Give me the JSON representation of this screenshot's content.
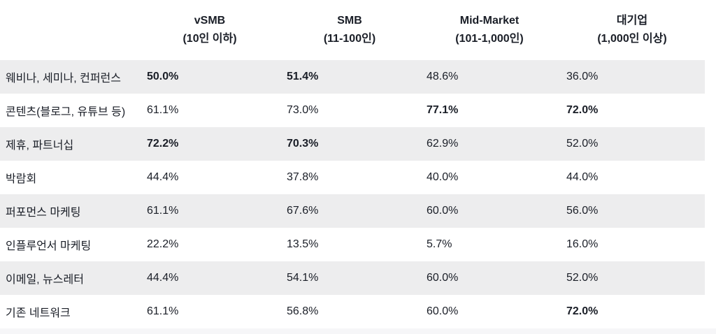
{
  "colors": {
    "text": "#1a1e27",
    "page_bg": "#ffffff",
    "stripe_row_bg": "#ededee",
    "white_row_bg": "#ffffff",
    "partial_row_bg": "#f6f6f8"
  },
  "table": {
    "columns": [
      {
        "line1": "vSMB",
        "line2": "(10인 이하)"
      },
      {
        "line1": "SMB",
        "line2": "(11-100인)"
      },
      {
        "line1": "Mid-Market",
        "line2": "(101-1,000인)"
      },
      {
        "line1": "대기업",
        "line2": "(1,000인 이상)"
      }
    ],
    "rows": [
      {
        "label": "웨비나, 세미나, 컨퍼런스",
        "values": [
          "50.0%",
          "51.4%",
          "48.6%",
          "36.0%"
        ],
        "bold": [
          true,
          true,
          false,
          false
        ]
      },
      {
        "label": "콘텐츠(블로그, 유튜브 등)",
        "values": [
          "61.1%",
          "73.0%",
          "77.1%",
          "72.0%"
        ],
        "bold": [
          false,
          false,
          true,
          true
        ]
      },
      {
        "label": "제휴, 파트너십",
        "values": [
          "72.2%",
          "70.3%",
          "62.9%",
          "52.0%"
        ],
        "bold": [
          true,
          true,
          false,
          false
        ]
      },
      {
        "label": "박람회",
        "values": [
          "44.4%",
          "37.8%",
          "40.0%",
          "44.0%"
        ],
        "bold": [
          false,
          false,
          false,
          false
        ]
      },
      {
        "label": "퍼포먼스 마케팅",
        "values": [
          "61.1%",
          "67.6%",
          "60.0%",
          "56.0%"
        ],
        "bold": [
          false,
          false,
          false,
          false
        ]
      },
      {
        "label": "인플루언서 마케팅",
        "values": [
          "22.2%",
          "13.5%",
          "5.7%",
          "16.0%"
        ],
        "bold": [
          false,
          false,
          false,
          false
        ]
      },
      {
        "label": "이메일, 뉴스레터",
        "values": [
          "44.4%",
          "54.1%",
          "60.0%",
          "52.0%"
        ],
        "bold": [
          false,
          false,
          false,
          false
        ]
      },
      {
        "label": "기존 네트워크",
        "values": [
          "61.1%",
          "56.8%",
          "60.0%",
          "72.0%"
        ],
        "bold": [
          false,
          false,
          false,
          true
        ]
      }
    ]
  },
  "chart_data": {
    "type": "table",
    "unit": "%",
    "categories": [
      "웨비나, 세미나, 컨퍼런스",
      "콘텐츠(블로그, 유튜브 등)",
      "제휴, 파트너십",
      "박람회",
      "퍼포먼스 마케팅",
      "인플루언서 마케팅",
      "이메일, 뉴스레터",
      "기존 네트워크"
    ],
    "series": [
      {
        "name": "vSMB (10인 이하)",
        "values": [
          50.0,
          61.1,
          72.2,
          44.4,
          61.1,
          22.2,
          44.4,
          61.1
        ]
      },
      {
        "name": "SMB (11-100인)",
        "values": [
          51.4,
          73.0,
          70.3,
          37.8,
          67.6,
          13.5,
          54.1,
          56.8
        ]
      },
      {
        "name": "Mid-Market (101-1,000인)",
        "values": [
          48.6,
          77.1,
          62.9,
          40.0,
          60.0,
          5.7,
          60.0,
          60.0
        ]
      },
      {
        "name": "대기업 (1,000인 이상)",
        "values": [
          36.0,
          72.0,
          52.0,
          44.0,
          56.0,
          16.0,
          52.0,
          72.0
        ]
      }
    ],
    "emphasis_bold_cells": [
      {
        "row": "웨비나, 세미나, 컨퍼런스",
        "columns": [
          "vSMB (10인 이하)",
          "SMB (11-100인)"
        ]
      },
      {
        "row": "콘텐츠(블로그, 유튜브 등)",
        "columns": [
          "Mid-Market (101-1,000인)",
          "대기업 (1,000인 이상)"
        ]
      },
      {
        "row": "제휴, 파트너십",
        "columns": [
          "vSMB (10인 이하)",
          "SMB (11-100인)"
        ]
      },
      {
        "row": "기존 네트워크",
        "columns": [
          "대기업 (1,000인 이상)"
        ]
      }
    ],
    "layout": {
      "striped_rows": true,
      "header_lines": 2,
      "value_alignment": "left",
      "header_alignment": "center"
    }
  }
}
